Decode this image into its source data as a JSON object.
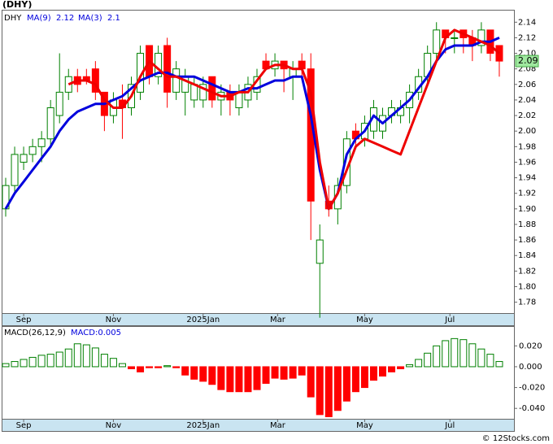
{
  "chart_data": {
    "type": "candlestick",
    "title": "(DHY)",
    "symbol": "DHY",
    "ylim": [
      1.766,
      2.156
    ],
    "yticks": [
      {
        "value": 2.14,
        "label": "2.14"
      },
      {
        "value": 2.12,
        "label": "2.12"
      },
      {
        "value": 2.1,
        "label": "2.10"
      },
      {
        "value": 2.08,
        "label": "2.08"
      },
      {
        "value": 2.06,
        "label": "2.06"
      },
      {
        "value": 2.04,
        "label": "2.04"
      },
      {
        "value": 2.02,
        "label": "2.02"
      },
      {
        "value": 2.0,
        "label": "2.00"
      },
      {
        "value": 1.98,
        "label": "1.98"
      },
      {
        "value": 1.96,
        "label": "1.96"
      },
      {
        "value": 1.94,
        "label": "1.94"
      },
      {
        "value": 1.92,
        "label": "1.92"
      },
      {
        "value": 1.9,
        "label": "1.90"
      },
      {
        "value": 1.88,
        "label": "1.88"
      },
      {
        "value": 1.86,
        "label": "1.86"
      },
      {
        "value": 1.84,
        "label": "1.84"
      },
      {
        "value": 1.82,
        "label": "1.82"
      },
      {
        "value": 1.8,
        "label": "1.80"
      },
      {
        "value": 1.78,
        "label": "1.78"
      }
    ],
    "xticks": [
      {
        "value": 2,
        "label": "Sep"
      },
      {
        "value": 12,
        "label": "Nov"
      },
      {
        "value": 22,
        "label": "2025Jan"
      },
      {
        "value": 30.3,
        "label": "Mar"
      },
      {
        "value": 40,
        "label": "May"
      },
      {
        "value": 49.5,
        "label": "Jul"
      }
    ],
    "up_color": "#008000",
    "down_color": "#ff0000",
    "open": [
      1.9,
      1.93,
      1.96,
      1.97,
      1.98,
      1.99,
      2.02,
      2.05,
      2.07,
      2.07,
      2.08,
      2.05,
      2.02,
      2.04,
      2.03,
      2.05,
      2.11,
      2.07,
      2.11,
      2.05,
      2.05,
      2.04,
      2.04,
      2.07,
      2.04,
      2.05,
      2.03,
      2.04,
      2.05,
      2.09,
      2.08,
      2.09,
      2.07,
      2.09,
      2.08,
      1.83,
      1.91,
      1.9,
      1.93,
      2.0,
      1.99,
      2.0,
      2.0,
      2.02,
      2.02,
      2.03,
      2.05,
      2.07,
      2.1,
      2.13,
      2.12,
      2.13,
      2.12,
      2.11,
      2.13,
      2.11
    ],
    "high": [
      1.94,
      1.98,
      1.98,
      1.99,
      2.0,
      2.04,
      2.1,
      2.08,
      2.08,
      2.08,
      2.09,
      2.05,
      2.05,
      2.06,
      2.07,
      2.11,
      2.11,
      2.11,
      2.12,
      2.09,
      2.08,
      2.07,
      2.07,
      2.07,
      2.06,
      2.06,
      2.06,
      2.07,
      2.08,
      2.1,
      2.1,
      2.09,
      2.09,
      2.1,
      2.1,
      1.88,
      1.93,
      1.94,
      2.0,
      2.01,
      2.02,
      2.04,
      2.03,
      2.04,
      2.04,
      2.06,
      2.08,
      2.11,
      2.14,
      2.13,
      2.13,
      2.13,
      2.13,
      2.14,
      2.13,
      2.11
    ],
    "low": [
      1.89,
      1.92,
      1.95,
      1.96,
      1.96,
      1.98,
      2.01,
      2.04,
      2.05,
      2.06,
      2.04,
      2.0,
      2.01,
      1.99,
      2.02,
      2.04,
      2.06,
      2.06,
      2.03,
      2.04,
      2.02,
      2.03,
      2.03,
      2.03,
      2.02,
      2.02,
      2.02,
      2.03,
      2.04,
      2.08,
      2.07,
      2.05,
      2.04,
      2.07,
      1.86,
      1.76,
      1.89,
      1.88,
      1.92,
      1.98,
      1.98,
      1.99,
      1.99,
      2.01,
      2.01,
      2.01,
      2.04,
      2.06,
      2.09,
      2.1,
      2.1,
      2.1,
      2.09,
      2.1,
      2.09,
      2.07
    ],
    "close": [
      1.93,
      1.97,
      1.97,
      1.98,
      1.99,
      2.03,
      2.05,
      2.07,
      2.06,
      2.065,
      2.05,
      2.02,
      2.04,
      2.03,
      2.06,
      2.1,
      2.07,
      2.1,
      2.05,
      2.08,
      2.07,
      2.06,
      2.06,
      2.04,
      2.05,
      2.04,
      2.05,
      2.06,
      2.07,
      2.08,
      2.09,
      2.08,
      2.08,
      2.08,
      1.91,
      1.86,
      1.9,
      1.93,
      1.99,
      1.99,
      2.01,
      2.03,
      2.02,
      2.03,
      2.03,
      2.05,
      2.07,
      2.1,
      2.13,
      2.12,
      2.12,
      2.12,
      2.11,
      2.13,
      2.1,
      2.09
    ],
    "series": [
      {
        "name": "MA(9)",
        "color": "#0000dd",
        "values": [
          1.9,
          1.92,
          1.935,
          1.95,
          1.965,
          1.98,
          2.0,
          2.015,
          2.025,
          2.03,
          2.035,
          2.035,
          2.04,
          2.045,
          2.055,
          2.065,
          2.07,
          2.075,
          2.075,
          2.07,
          2.07,
          2.07,
          2.065,
          2.06,
          2.055,
          2.05,
          2.05,
          2.055,
          2.055,
          2.06,
          2.065,
          2.065,
          2.07,
          2.07,
          2.02,
          1.95,
          1.9,
          1.92,
          1.97,
          1.99,
          2.0,
          2.02,
          2.01,
          2.02,
          2.03,
          2.04,
          2.055,
          2.07,
          2.09,
          2.105,
          2.11,
          2.11,
          2.11,
          2.115,
          2.115,
          2.12
        ]
      },
      {
        "name": "MA(3)",
        "color": "#ee0000",
        "values": [
          null,
          null,
          null,
          null,
          null,
          null,
          null,
          2.06,
          2.065,
          2.065,
          2.06,
          2.04,
          2.03,
          2.03,
          2.045,
          2.07,
          2.09,
          2.08,
          2.07,
          2.07,
          2.065,
          2.06,
          2.055,
          2.05,
          2.045,
          2.045,
          2.05,
          2.05,
          2.065,
          2.08,
          2.085,
          2.085,
          2.08,
          2.08,
          2.05,
          1.96,
          1.9,
          1.92,
          1.95,
          1.98,
          1.99,
          1.985,
          1.98,
          1.975,
          1.97,
          2.0,
          2.03,
          2.06,
          2.09,
          2.12,
          2.13,
          2.125,
          2.12,
          2.115,
          2.11,
          2.1
        ]
      }
    ],
    "macd": {
      "title": "MACD(26,12,9)",
      "current": "MACD:0.005",
      "ylim": [
        -0.05,
        0.039
      ],
      "yticks": [
        {
          "value": 0.02,
          "label": "0.020"
        },
        {
          "value": 0,
          "label": "0.000"
        },
        {
          "value": -0.02,
          "label": "-0.020"
        },
        {
          "value": -0.04,
          "label": "-0.040"
        }
      ],
      "values": [
        0.003,
        0.005,
        0.007,
        0.009,
        0.011,
        0.012,
        0.014,
        0.017,
        0.022,
        0.021,
        0.018,
        0.012,
        0.008,
        0.003,
        -0.002,
        -0.005,
        -0.001,
        -0.001,
        0.001,
        -0.001,
        -0.008,
        -0.012,
        -0.014,
        -0.017,
        -0.022,
        -0.024,
        -0.024,
        -0.024,
        -0.022,
        -0.016,
        -0.011,
        -0.012,
        -0.011,
        -0.008,
        -0.029,
        -0.046,
        -0.048,
        -0.042,
        -0.033,
        -0.024,
        -0.02,
        -0.013,
        -0.009,
        -0.005,
        -0.002,
        0.002,
        0.007,
        0.013,
        0.02,
        0.025,
        0.027,
        0.026,
        0.022,
        0.017,
        0.012,
        0.005
      ]
    },
    "footer": "© 12Stocks.com"
  }
}
